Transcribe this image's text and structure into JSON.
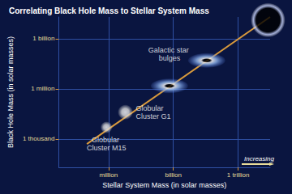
{
  "chart_data": {
    "type": "scatter",
    "title": "Correlating Black Hole Mass to Stellar System Mass",
    "xlabel": "Stellar System Mass (in solar masses)",
    "ylabel": "Black Hole Mass (in solar masses)",
    "log": true,
    "grid": true,
    "xlim": [
      5000,
      30000000000000
    ],
    "ylim": [
      20,
      20000000000
    ],
    "xticks": [
      {
        "value": 1000000,
        "label": "million"
      },
      {
        "value": 1000000000,
        "label": "billion"
      },
      {
        "value": 1000000000000,
        "label": "1 trillion"
      }
    ],
    "yticks": [
      {
        "value": 1000,
        "label": "1 thousand"
      },
      {
        "value": 1000000,
        "label": "1 million"
      },
      {
        "value": 1000000000,
        "label": "1 billion"
      }
    ],
    "annotations": [
      "Increasing"
    ],
    "series": [
      {
        "name": "Globular Cluster M15",
        "type": "scatter",
        "color": "#d8d8d8",
        "x": [
          800000
        ],
        "values": [
          5000
        ]
      },
      {
        "name": "Globular Cluster G1",
        "type": "scatter",
        "color": "#e0e0e0",
        "x": [
          6000000
        ],
        "values": [
          40000
        ]
      },
      {
        "name": "Galactic star bulges",
        "type": "scatter",
        "color": "#8fb4ec",
        "x": [
          660000000,
          35000000000
        ],
        "values": [
          1500000,
          50000000
        ]
      },
      {
        "type": "scatter",
        "color": "#000000",
        "x": [
          24000000000000
        ],
        "values": [
          13000000000
        ]
      },
      {
        "type": "line",
        "color": "#d99a3c",
        "x": [
          100000,
          30000000000000
        ],
        "values": [
          500,
          20000000000
        ]
      }
    ]
  }
}
